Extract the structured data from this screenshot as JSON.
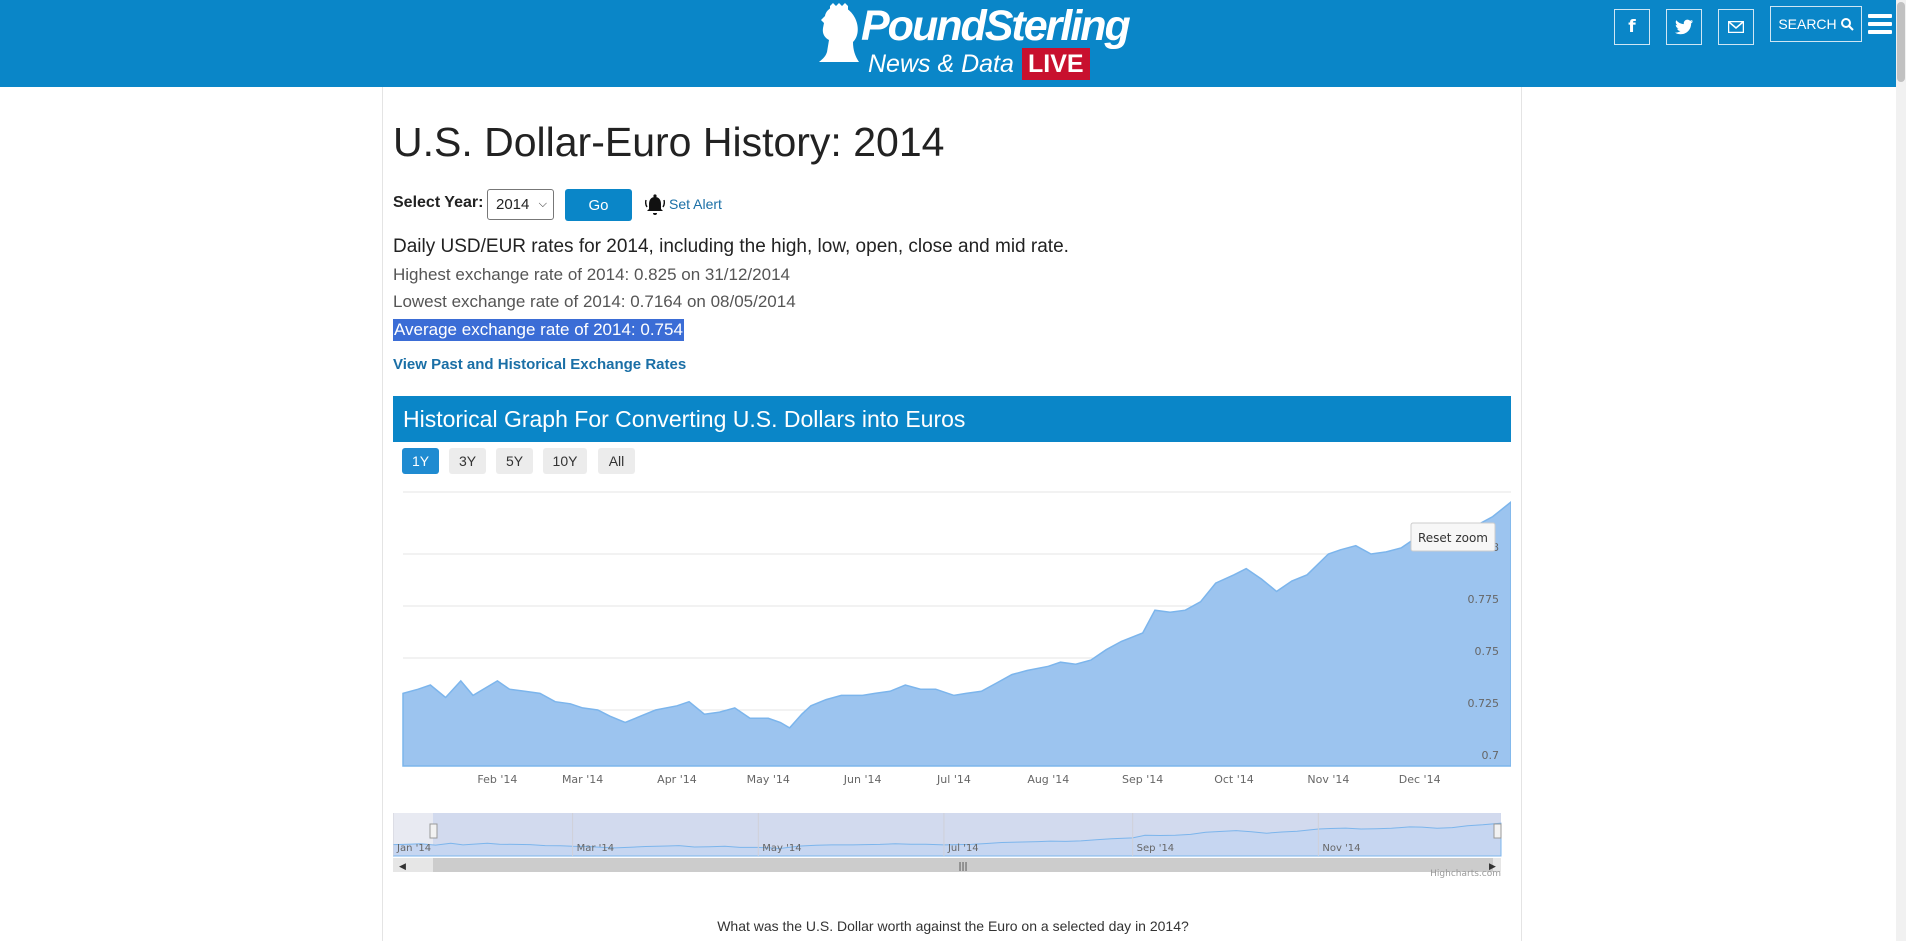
{
  "header": {
    "brand": "PoundSterling",
    "subtitle": "News & Data",
    "live_badge": "LIVE",
    "social": [
      {
        "icon": "facebook-icon",
        "glyph": "f"
      },
      {
        "icon": "twitter-icon",
        "glyph": "t"
      },
      {
        "icon": "email-icon",
        "glyph": "✉"
      }
    ],
    "search_label": "SEARCH"
  },
  "page": {
    "title": "U.S. Dollar-Euro History: 2014",
    "select_year_label": "Select Year:",
    "selected_year": "2014",
    "go_label": "Go",
    "set_alert_label": "Set Alert",
    "description": "Daily USD/EUR rates for 2014, including the high, low, open, close and mid rate.",
    "highest": "Highest exchange rate of 2014: 0.825 on 31/12/2014",
    "lowest": "Lowest exchange rate of 2014: 0.7164 on 08/05/2014",
    "average": "Average exchange rate of 2014: 0.754",
    "historical_link": "View Past and Historical Exchange Rates",
    "graph_title": "Historical Graph For Converting U.S. Dollars into Euros",
    "range_buttons": [
      "1Y",
      "3Y",
      "5Y",
      "10Y",
      "All"
    ],
    "active_range": "1Y",
    "reset_zoom": "Reset zoom",
    "credits": "Highcharts.com",
    "question": "What was the U.S. Dollar worth against the Euro on a selected day in 2014?"
  },
  "colors": {
    "brand_blue": "#0a86c8",
    "area_fill": "#9cc4ef",
    "area_line": "#7cb5ec",
    "highlight": "#3b6dd6"
  },
  "chart_data": {
    "type": "area",
    "x_ticks": [
      "Feb '14",
      "Mar '14",
      "Apr '14",
      "May '14",
      "Jun '14",
      "Jul '14",
      "Aug '14",
      "Sep '14",
      "Oct '14",
      "Nov '14",
      "Dec '14"
    ],
    "y_ticks": [
      "0.7",
      "0.725",
      "0.75",
      "0.775",
      "0.8"
    ],
    "ylim": [
      0.7,
      0.825
    ],
    "navigator_ticks": [
      "Jan '14",
      "Mar '14",
      "May '14",
      "Jul '14",
      "Sep '14",
      "Nov '14"
    ],
    "series": [
      {
        "dates": [
          "2014-01-01",
          "2014-01-06",
          "2014-01-10",
          "2014-01-15",
          "2014-01-20",
          "2014-01-24",
          "2014-02-01",
          "2014-02-05",
          "2014-02-10",
          "2014-02-15",
          "2014-02-20",
          "2014-02-25",
          "2014-03-01",
          "2014-03-06",
          "2014-03-10",
          "2014-03-15",
          "2014-03-20",
          "2014-03-25",
          "2014-04-01",
          "2014-04-05",
          "2014-04-10",
          "2014-04-15",
          "2014-04-20",
          "2014-04-25",
          "2014-05-01",
          "2014-05-05",
          "2014-05-08",
          "2014-05-12",
          "2014-05-15",
          "2014-05-20",
          "2014-05-25",
          "2014-06-01",
          "2014-06-05",
          "2014-06-10",
          "2014-06-15",
          "2014-06-20",
          "2014-06-25",
          "2014-07-01",
          "2014-07-05",
          "2014-07-10",
          "2014-07-15",
          "2014-07-20",
          "2014-07-25",
          "2014-08-01",
          "2014-08-05",
          "2014-08-10",
          "2014-08-15",
          "2014-08-20",
          "2014-08-25",
          "2014-09-01",
          "2014-09-05",
          "2014-09-10",
          "2014-09-15",
          "2014-09-20",
          "2014-09-25",
          "2014-10-01",
          "2014-10-05",
          "2014-10-10",
          "2014-10-15",
          "2014-10-20",
          "2014-10-25",
          "2014-11-01",
          "2014-11-05",
          "2014-11-10",
          "2014-11-15",
          "2014-11-20",
          "2014-11-25",
          "2014-12-01",
          "2014-12-05",
          "2014-12-10",
          "2014-12-15",
          "2014-12-20",
          "2014-12-25",
          "2014-12-31"
        ],
        "values": [
          0.733,
          0.735,
          0.737,
          0.731,
          0.739,
          0.732,
          0.739,
          0.735,
          0.734,
          0.733,
          0.729,
          0.728,
          0.726,
          0.725,
          0.722,
          0.719,
          0.722,
          0.725,
          0.727,
          0.729,
          0.723,
          0.724,
          0.726,
          0.721,
          0.721,
          0.719,
          0.7164,
          0.723,
          0.727,
          0.73,
          0.732,
          0.732,
          0.733,
          0.734,
          0.737,
          0.735,
          0.735,
          0.732,
          0.733,
          0.734,
          0.738,
          0.742,
          0.744,
          0.746,
          0.748,
          0.747,
          0.749,
          0.754,
          0.758,
          0.762,
          0.773,
          0.772,
          0.773,
          0.777,
          0.786,
          0.79,
          0.793,
          0.788,
          0.782,
          0.787,
          0.79,
          0.8,
          0.802,
          0.804,
          0.8,
          0.801,
          0.803,
          0.809,
          0.808,
          0.803,
          0.806,
          0.814,
          0.818,
          0.825
        ]
      }
    ]
  }
}
